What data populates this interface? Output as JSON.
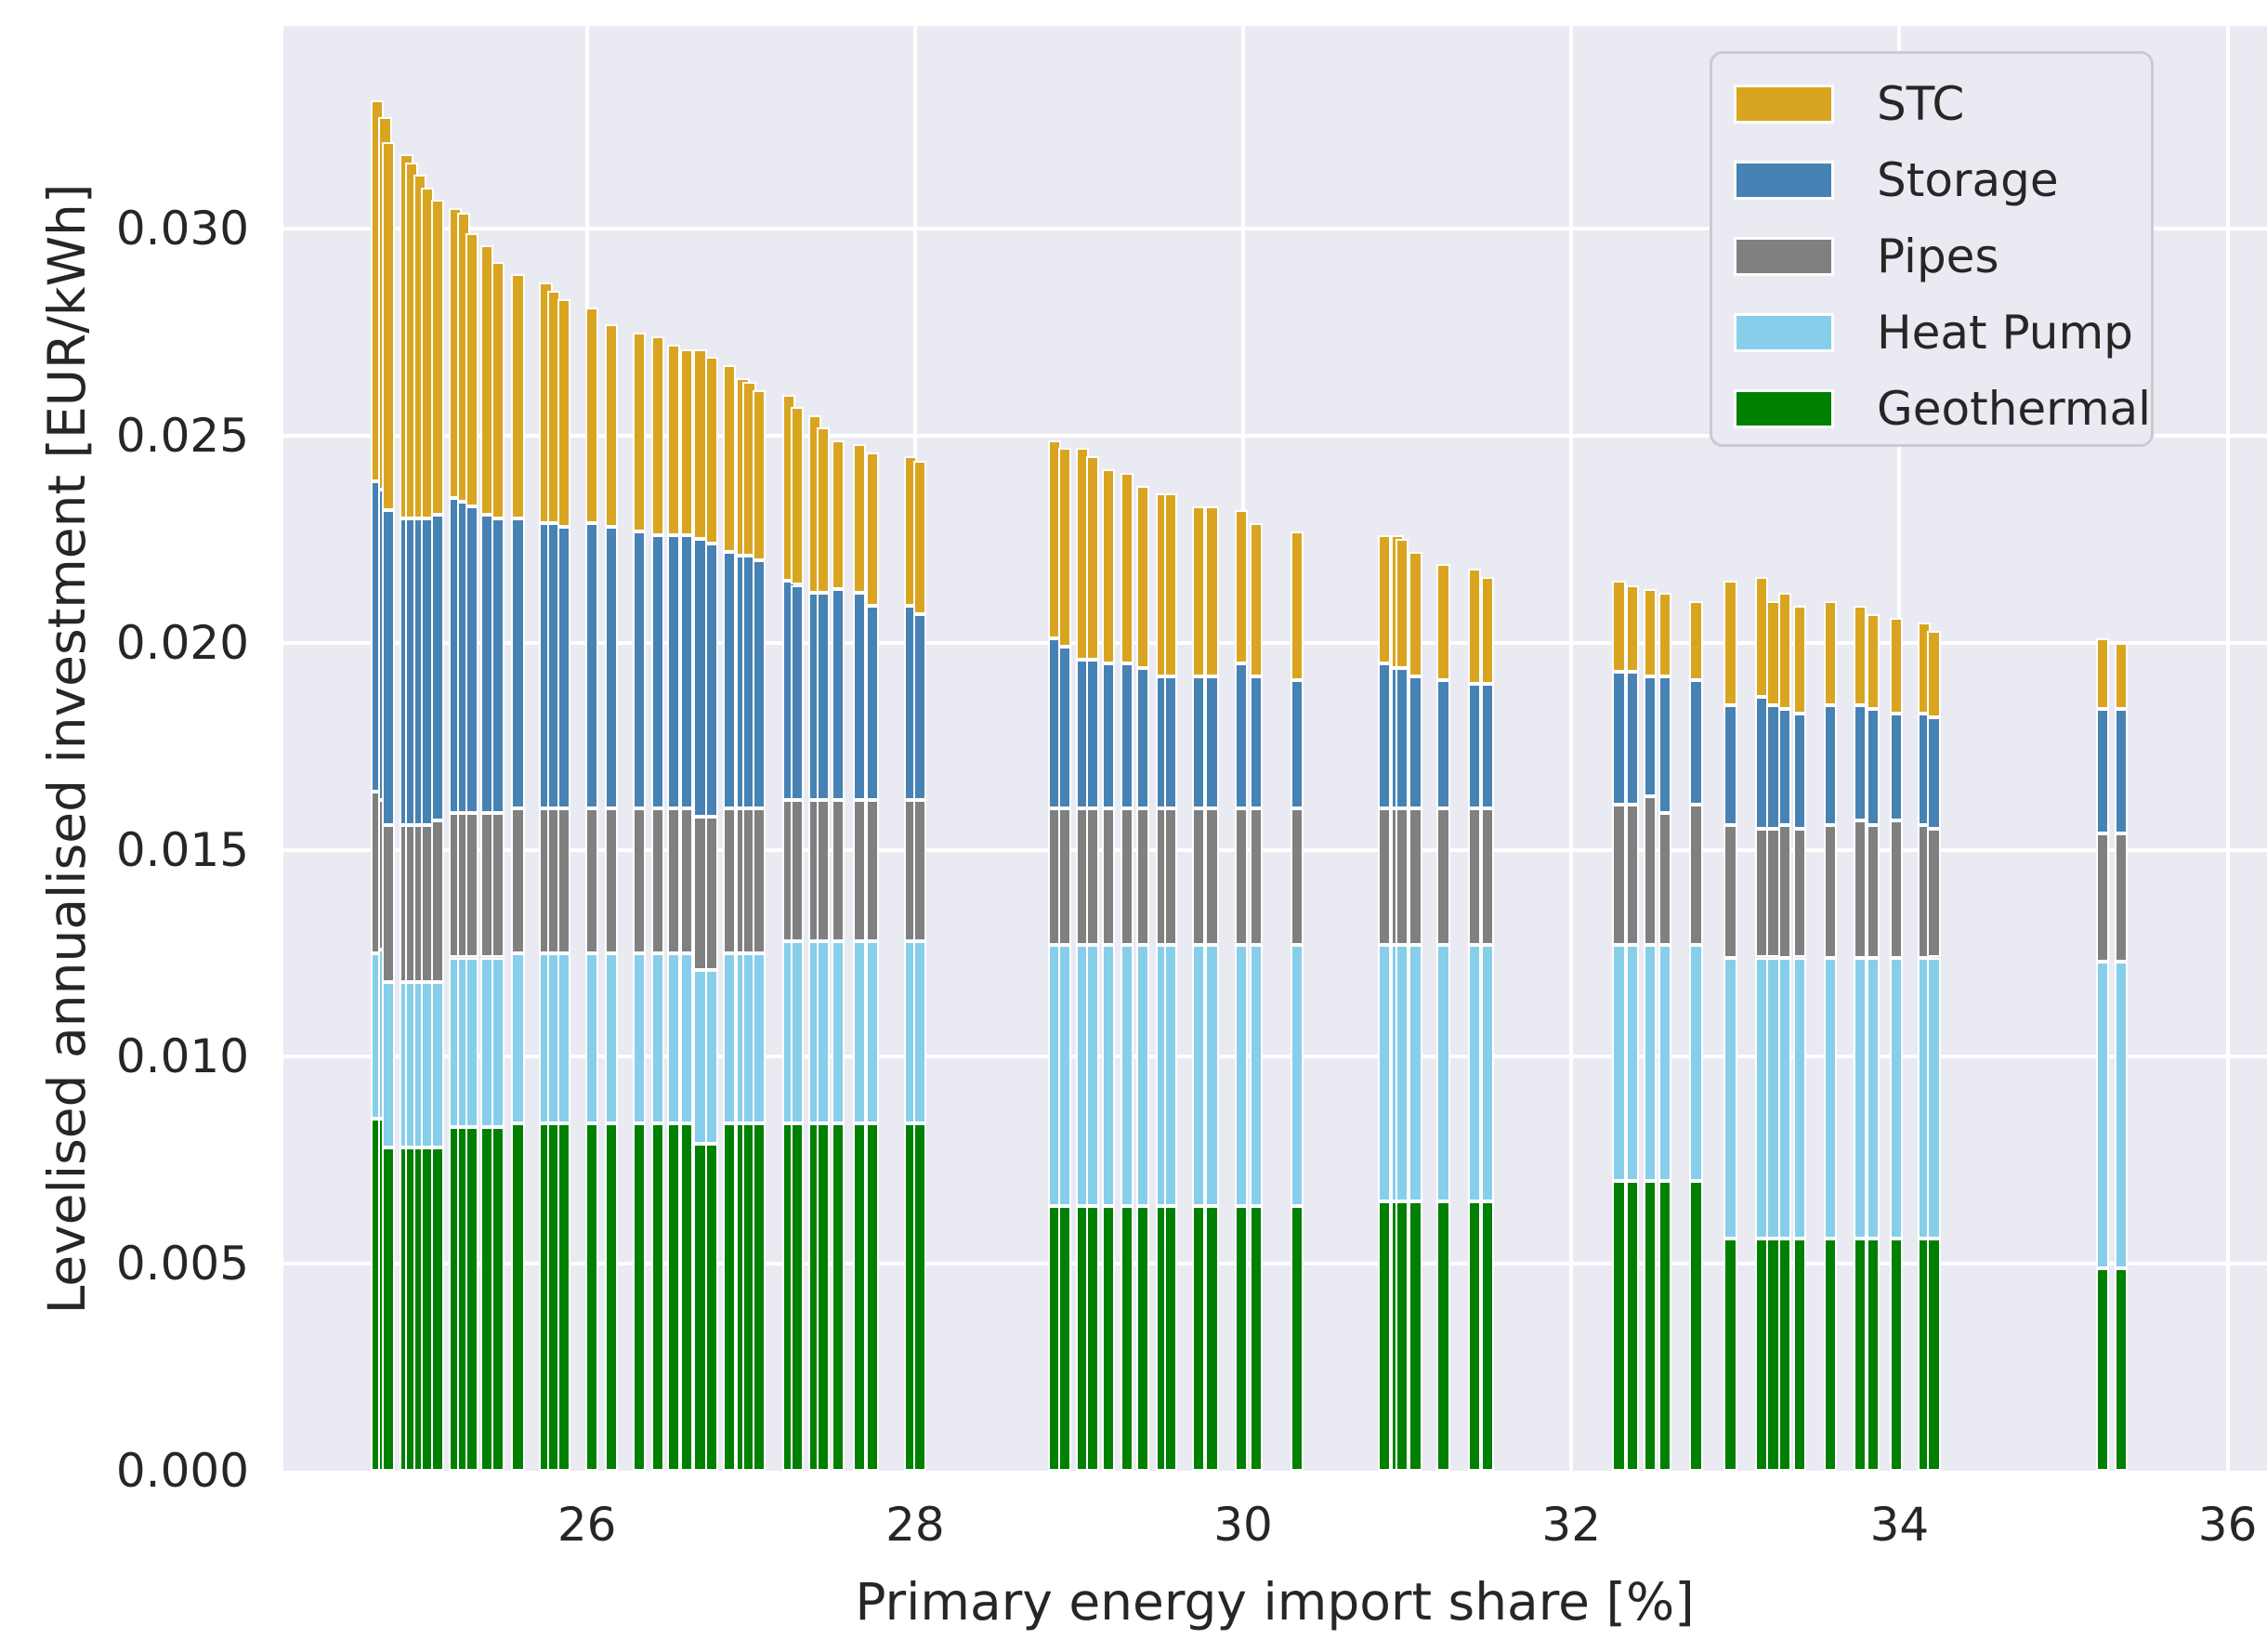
{
  "figure": {
    "xlabel": "Primary energy import share [%]",
    "ylabel": "Levelised annualised investment [EUR/kWh]"
  },
  "legend": {
    "items": [
      {
        "label": "STC",
        "color": "#d9a521"
      },
      {
        "label": "Storage",
        "color": "#4682b4"
      },
      {
        "label": "Pipes",
        "color": "#808080"
      },
      {
        "label": "Heat Pump",
        "color": "#87ceeb"
      },
      {
        "label": "Geothermal",
        "color": "#008000"
      }
    ]
  },
  "chart_data": {
    "type": "bar",
    "stacked": true,
    "title": "",
    "xlabel": "Primary energy import share [%]",
    "ylabel": "Levelised annualised investment [EUR/kWh]",
    "background_color": "#eaeaf2",
    "grid": true,
    "grid_color": "#ffffff",
    "legend_position": "upper right",
    "xlim": [
      24.15,
      36.24
    ],
    "ylim": [
      0,
      0.0349
    ],
    "x_ticks": [
      26,
      28,
      30,
      32,
      34,
      36
    ],
    "y_ticks": [
      {
        "value": 0.0,
        "label": "0.000"
      },
      {
        "value": 0.005,
        "label": "0.005"
      },
      {
        "value": 0.01,
        "label": "0.010"
      },
      {
        "value": 0.015,
        "label": "0.015"
      },
      {
        "value": 0.02,
        "label": "0.020"
      },
      {
        "value": 0.025,
        "label": "0.025"
      },
      {
        "value": 0.03,
        "label": "0.030"
      }
    ],
    "bar_width_pct": 0.08,
    "series_bottom_to_top": [
      {
        "name": "Geothermal",
        "color": "#008000"
      },
      {
        "name": "Heat Pump",
        "color": "#87ceeb"
      },
      {
        "name": "Pipes",
        "color": "#808080"
      },
      {
        "name": "Storage",
        "color": "#4682b4"
      },
      {
        "name": "STC",
        "color": "#d9a521"
      }
    ],
    "columns": [
      "x_percent",
      "Geothermal",
      "Heat Pump",
      "Pipes",
      "Storage",
      "STC"
    ],
    "bars": [
      [
        24.72,
        0.0085,
        0.004,
        0.0039,
        0.0075,
        0.0092
      ],
      [
        24.77,
        0.0085,
        0.0041,
        0.0036,
        0.0075,
        0.009
      ],
      [
        24.79,
        0.0078,
        0.004,
        0.0038,
        0.0076,
        0.0089
      ],
      [
        24.9,
        0.0078,
        0.004,
        0.0038,
        0.0074,
        0.0088
      ],
      [
        24.93,
        0.0078,
        0.004,
        0.0038,
        0.0074,
        0.0086
      ],
      [
        24.98,
        0.0078,
        0.004,
        0.0038,
        0.0074,
        0.0083
      ],
      [
        25.03,
        0.0078,
        0.004,
        0.0038,
        0.0074,
        0.008
      ],
      [
        25.09,
        0.0078,
        0.004,
        0.0039,
        0.0074,
        0.0076
      ],
      [
        25.2,
        0.0083,
        0.0041,
        0.0035,
        0.0076,
        0.007
      ],
      [
        25.25,
        0.0083,
        0.0041,
        0.0035,
        0.0075,
        0.007
      ],
      [
        25.3,
        0.0083,
        0.0041,
        0.0035,
        0.0074,
        0.0066
      ],
      [
        25.39,
        0.0083,
        0.0041,
        0.0035,
        0.0072,
        0.0065
      ],
      [
        25.46,
        0.0083,
        0.0041,
        0.0035,
        0.0071,
        0.0062
      ],
      [
        25.58,
        0.0084,
        0.0041,
        0.0035,
        0.007,
        0.0059
      ],
      [
        25.75,
        0.0084,
        0.0041,
        0.0035,
        0.0069,
        0.0058
      ],
      [
        25.8,
        0.0084,
        0.0041,
        0.0035,
        0.0069,
        0.0056
      ],
      [
        25.86,
        0.0084,
        0.0041,
        0.0035,
        0.0068,
        0.0055
      ],
      [
        26.03,
        0.0084,
        0.0041,
        0.0035,
        0.0069,
        0.0052
      ],
      [
        26.15,
        0.0084,
        0.0041,
        0.0035,
        0.0068,
        0.0049
      ],
      [
        26.32,
        0.0084,
        0.0041,
        0.0035,
        0.0067,
        0.0048
      ],
      [
        26.43,
        0.0084,
        0.0041,
        0.0035,
        0.0066,
        0.0048
      ],
      [
        26.53,
        0.0084,
        0.0041,
        0.0035,
        0.0066,
        0.0046
      ],
      [
        26.61,
        0.0084,
        0.0041,
        0.0035,
        0.0066,
        0.0045
      ],
      [
        26.69,
        0.0079,
        0.0042,
        0.0037,
        0.0067,
        0.0046
      ],
      [
        26.76,
        0.0079,
        0.0042,
        0.0037,
        0.0066,
        0.0045
      ],
      [
        26.87,
        0.0084,
        0.0041,
        0.0035,
        0.0062,
        0.0045
      ],
      [
        26.95,
        0.0084,
        0.0041,
        0.0035,
        0.0061,
        0.0043
      ],
      [
        26.99,
        0.0084,
        0.0041,
        0.0035,
        0.0061,
        0.0042
      ],
      [
        27.05,
        0.0084,
        0.0041,
        0.0035,
        0.006,
        0.0041
      ],
      [
        27.23,
        0.0084,
        0.0044,
        0.0034,
        0.0053,
        0.0045
      ],
      [
        27.28,
        0.0084,
        0.0044,
        0.0034,
        0.0052,
        0.0043
      ],
      [
        27.39,
        0.0084,
        0.0044,
        0.0034,
        0.005,
        0.0043
      ],
      [
        27.44,
        0.0084,
        0.0044,
        0.0034,
        0.005,
        0.004
      ],
      [
        27.53,
        0.0084,
        0.0044,
        0.0034,
        0.0051,
        0.0036
      ],
      [
        27.66,
        0.0084,
        0.0044,
        0.0034,
        0.005,
        0.0036
      ],
      [
        27.74,
        0.0084,
        0.0044,
        0.0034,
        0.0047,
        0.0037
      ],
      [
        27.97,
        0.0084,
        0.0044,
        0.0034,
        0.0047,
        0.0036
      ],
      [
        28.03,
        0.0084,
        0.0044,
        0.0034,
        0.0045,
        0.0037
      ],
      [
        28.85,
        0.0064,
        0.0063,
        0.0033,
        0.0041,
        0.0048
      ],
      [
        28.91,
        0.0064,
        0.0063,
        0.0033,
        0.0039,
        0.0048
      ],
      [
        29.02,
        0.0064,
        0.0063,
        0.0033,
        0.0036,
        0.0051
      ],
      [
        29.08,
        0.0064,
        0.0063,
        0.0033,
        0.0036,
        0.0049
      ],
      [
        29.18,
        0.0064,
        0.0063,
        0.0033,
        0.0035,
        0.0047
      ],
      [
        29.29,
        0.0064,
        0.0063,
        0.0033,
        0.0035,
        0.0046
      ],
      [
        29.39,
        0.0064,
        0.0063,
        0.0033,
        0.0034,
        0.0044
      ],
      [
        29.51,
        0.0064,
        0.0063,
        0.0033,
        0.0032,
        0.0044
      ],
      [
        29.56,
        0.0064,
        0.0063,
        0.0033,
        0.0032,
        0.0044
      ],
      [
        29.73,
        0.0064,
        0.0063,
        0.0033,
        0.0032,
        0.0041
      ],
      [
        29.81,
        0.0064,
        0.0063,
        0.0033,
        0.0032,
        0.0041
      ],
      [
        29.99,
        0.0064,
        0.0063,
        0.0033,
        0.0035,
        0.0037
      ],
      [
        30.08,
        0.0064,
        0.0063,
        0.0033,
        0.0032,
        0.0037
      ],
      [
        30.33,
        0.0064,
        0.0063,
        0.0033,
        0.0031,
        0.0036
      ],
      [
        30.86,
        0.0065,
        0.0062,
        0.0033,
        0.0035,
        0.0031
      ],
      [
        30.94,
        0.0065,
        0.0062,
        0.0033,
        0.0034,
        0.0032
      ],
      [
        30.97,
        0.0065,
        0.0062,
        0.0033,
        0.0034,
        0.0031
      ],
      [
        31.05,
        0.0065,
        0.0062,
        0.0033,
        0.0032,
        0.003
      ],
      [
        31.22,
        0.0065,
        0.0062,
        0.0033,
        0.0031,
        0.0028
      ],
      [
        31.41,
        0.0065,
        0.0062,
        0.0033,
        0.003,
        0.0028
      ],
      [
        31.49,
        0.0065,
        0.0062,
        0.0033,
        0.003,
        0.0026
      ],
      [
        32.29,
        0.007,
        0.0057,
        0.0034,
        0.0032,
        0.0022
      ],
      [
        32.37,
        0.007,
        0.0057,
        0.0034,
        0.0032,
        0.0021
      ],
      [
        32.48,
        0.007,
        0.0057,
        0.0036,
        0.0029,
        0.0021
      ],
      [
        32.57,
        0.007,
        0.0057,
        0.0032,
        0.0033,
        0.002
      ],
      [
        32.76,
        0.007,
        0.0057,
        0.0034,
        0.003,
        0.0019
      ],
      [
        32.97,
        0.0056,
        0.0068,
        0.0032,
        0.0029,
        0.003
      ],
      [
        33.16,
        0.0056,
        0.0068,
        0.0031,
        0.0032,
        0.0029
      ],
      [
        33.23,
        0.0056,
        0.0068,
        0.0031,
        0.003,
        0.0025
      ],
      [
        33.3,
        0.0056,
        0.0068,
        0.0032,
        0.0028,
        0.0028
      ],
      [
        33.39,
        0.0056,
        0.0068,
        0.0031,
        0.0028,
        0.0026
      ],
      [
        33.58,
        0.0056,
        0.0068,
        0.0032,
        0.0029,
        0.0025
      ],
      [
        33.76,
        0.0056,
        0.0068,
        0.0033,
        0.0028,
        0.0024
      ],
      [
        33.84,
        0.0056,
        0.0068,
        0.0032,
        0.0028,
        0.0023
      ],
      [
        33.98,
        0.0056,
        0.0068,
        0.0033,
        0.0026,
        0.0023
      ],
      [
        34.15,
        0.0056,
        0.0068,
        0.0032,
        0.0027,
        0.0022
      ],
      [
        34.21,
        0.0056,
        0.0068,
        0.0031,
        0.0027,
        0.0021
      ],
      [
        35.24,
        0.0049,
        0.0074,
        0.0031,
        0.003,
        0.0017
      ],
      [
        35.35,
        0.0049,
        0.0074,
        0.0031,
        0.003,
        0.0016
      ]
    ]
  }
}
